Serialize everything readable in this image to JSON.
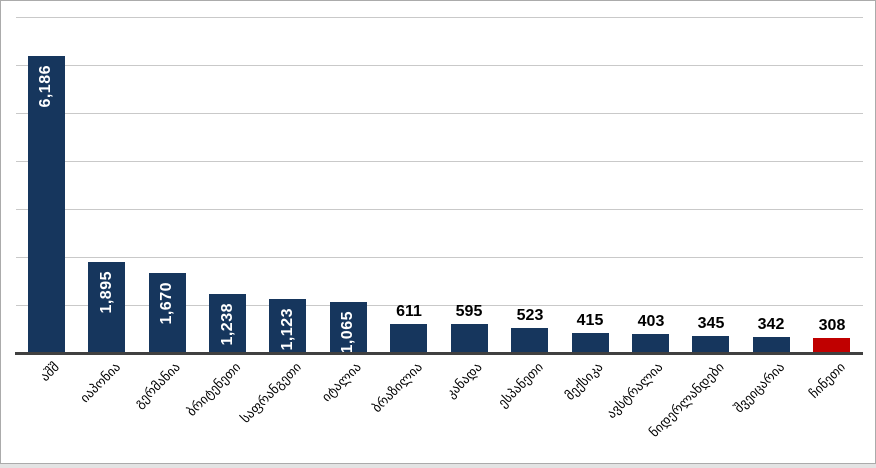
{
  "chart_data": {
    "type": "bar",
    "title": "",
    "xlabel": "",
    "ylabel": "",
    "categories": [
      "აშშ",
      "იაპონია",
      "გერმანია",
      "ბრიტენეთი",
      "საფრანგეთი",
      "იტალია",
      "ბრაზილია",
      "კანადა",
      "ესპანეთი",
      "მექსიკა",
      "ავსტრალია",
      "ნიდერლანდები",
      "შვეიცარია",
      "ჩინეთი"
    ],
    "values": [
      6186,
      1895,
      1670,
      1238,
      1123,
      1065,
      611,
      595,
      523,
      415,
      403,
      345,
      342,
      308
    ],
    "value_labels": [
      "6,186",
      "1,895",
      "1,670",
      "1,238",
      "1,123",
      "1,065",
      "611",
      "595",
      "523",
      "415",
      "403",
      "345",
      "342",
      "308"
    ],
    "ylim": [
      0,
      7000
    ],
    "gridline_interval": 1000,
    "grid": true,
    "legend": false,
    "y_tick_labels_visible": false,
    "label_inside_threshold": 1000,
    "highlight_index": 13,
    "colors": {
      "bar_default": "#16365d",
      "bar_highlight": "#c00000",
      "gridline": "#c9c9c9",
      "axis_line": "#404040",
      "label_inside": "#ffffff",
      "label_outside": "#000000",
      "category_label": "#000000",
      "panel_border": "#ababab",
      "background": "#ffffff"
    }
  }
}
